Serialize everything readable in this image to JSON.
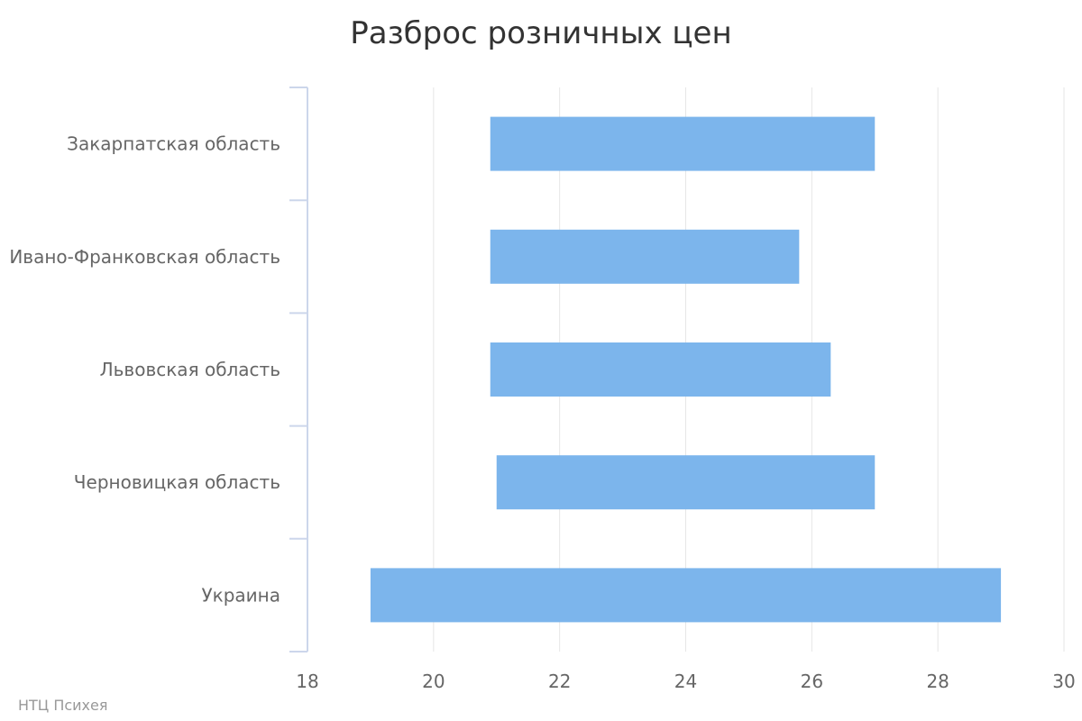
{
  "chart_data": {
    "type": "bar",
    "orientation": "horizontal",
    "bar_style": "floating-range",
    "title": "Разброс розничных цен",
    "categories": [
      "Закарпатская область",
      "Ивано-Франковская область",
      "Львовская область",
      "Черновицкая область",
      "Украина"
    ],
    "series": [
      {
        "low": [
          20.9,
          20.9,
          20.9,
          21.0,
          19.0
        ],
        "high": [
          27.0,
          25.8,
          26.3,
          27.0,
          29.0
        ]
      }
    ],
    "xlim": [
      18,
      30
    ],
    "xticks": [
      "18",
      "20",
      "22",
      "24",
      "26",
      "28",
      "30"
    ],
    "grid": true,
    "legend": "none",
    "colors": {
      "bar": "#7cb5ec",
      "grid": "#e6e6e6",
      "axis": "#ccd6eb"
    }
  },
  "credit": "НТЦ Психея"
}
